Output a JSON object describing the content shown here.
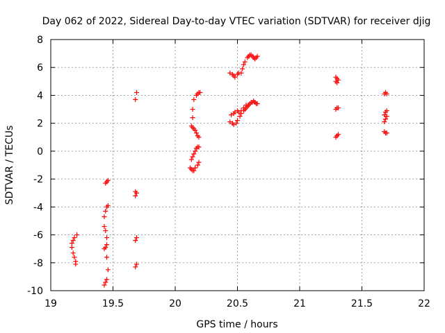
{
  "chart_data": {
    "type": "scatter",
    "title": "Day 062 of 2022, Sidereal Day-to-day VTEC variation (SDTVAR) for receiver djig",
    "xlabel": "GPS time / hours",
    "ylabel": "SDTVAR / TECUs",
    "xlim": [
      19,
      22
    ],
    "ylim": [
      -10,
      8
    ],
    "xticks": [
      19,
      19.5,
      20,
      20.5,
      21,
      21.5,
      22
    ],
    "xtick_labels": [
      "19",
      "19.5",
      "20",
      "20.5",
      "21",
      "21.5",
      "22"
    ],
    "yticks": [
      -10,
      -8,
      -6,
      -4,
      -2,
      0,
      2,
      4,
      6,
      8
    ],
    "ytick_labels": [
      "-10",
      "-8",
      "-6",
      "-4",
      "-2",
      "0",
      "2",
      "4",
      "6",
      "8"
    ],
    "grid": true,
    "marker": "+",
    "color": "#ff0000",
    "series": [
      {
        "points": [
          [
            19.17,
            -6.9
          ],
          [
            19.17,
            -6.6
          ],
          [
            19.18,
            -7.3
          ],
          [
            19.18,
            -6.4
          ],
          [
            19.19,
            -7.6
          ],
          [
            19.19,
            -6.2
          ],
          [
            19.2,
            -7.9
          ],
          [
            19.2,
            -8.1
          ],
          [
            19.21,
            -6.0
          ],
          [
            19.43,
            -9.6
          ],
          [
            19.44,
            -9.4
          ],
          [
            19.45,
            -9.2
          ],
          [
            19.46,
            -8.5
          ],
          [
            19.45,
            -7.6
          ],
          [
            19.44,
            -6.9
          ],
          [
            19.45,
            -6.7
          ],
          [
            19.43,
            -7.0
          ],
          [
            19.45,
            -6.2
          ],
          [
            19.44,
            -5.7
          ],
          [
            19.43,
            -5.4
          ],
          [
            19.43,
            -4.7
          ],
          [
            19.44,
            -4.3
          ],
          [
            19.45,
            -4.0
          ],
          [
            19.46,
            -3.9
          ],
          [
            19.44,
            -2.3
          ],
          [
            19.45,
            -2.2
          ],
          [
            19.46,
            -2.1
          ],
          [
            19.68,
            -8.3
          ],
          [
            19.69,
            -8.1
          ],
          [
            19.68,
            -6.4
          ],
          [
            19.69,
            -6.2
          ],
          [
            19.68,
            -3.2
          ],
          [
            19.69,
            -3.0
          ],
          [
            19.68,
            -2.9
          ],
          [
            19.68,
            3.7
          ],
          [
            19.69,
            4.2
          ],
          [
            20.12,
            -1.2
          ],
          [
            20.13,
            -1.3
          ],
          [
            20.14,
            -1.4
          ],
          [
            20.15,
            -1.4
          ],
          [
            20.16,
            -1.2
          ],
          [
            20.18,
            -1.0
          ],
          [
            20.19,
            -0.8
          ],
          [
            20.13,
            -0.6
          ],
          [
            20.14,
            -0.4
          ],
          [
            20.15,
            -0.2
          ],
          [
            20.16,
            0.0
          ],
          [
            20.17,
            0.2
          ],
          [
            20.18,
            0.3
          ],
          [
            20.19,
            0.3
          ],
          [
            20.13,
            1.8
          ],
          [
            20.14,
            1.7
          ],
          [
            20.15,
            1.6
          ],
          [
            20.16,
            1.5
          ],
          [
            20.17,
            1.3
          ],
          [
            20.18,
            1.1
          ],
          [
            20.19,
            1.0
          ],
          [
            20.14,
            2.4
          ],
          [
            20.14,
            3.0
          ],
          [
            20.15,
            3.7
          ],
          [
            20.17,
            4.0
          ],
          [
            20.18,
            4.1
          ],
          [
            20.19,
            4.2
          ],
          [
            20.2,
            4.2
          ],
          [
            20.44,
            2.1
          ],
          [
            20.46,
            2.0
          ],
          [
            20.47,
            1.9
          ],
          [
            20.49,
            2.0
          ],
          [
            20.5,
            2.2
          ],
          [
            20.52,
            2.5
          ],
          [
            20.53,
            2.7
          ],
          [
            20.55,
            2.9
          ],
          [
            20.56,
            3.0
          ],
          [
            20.57,
            3.1
          ],
          [
            20.58,
            3.2
          ],
          [
            20.59,
            3.3
          ],
          [
            20.6,
            3.4
          ],
          [
            20.61,
            3.5
          ],
          [
            20.62,
            3.5
          ],
          [
            20.63,
            3.6
          ],
          [
            20.64,
            3.5
          ],
          [
            20.65,
            3.4
          ],
          [
            20.66,
            3.4
          ],
          [
            20.45,
            2.6
          ],
          [
            20.47,
            2.7
          ],
          [
            20.48,
            2.8
          ],
          [
            20.5,
            2.9
          ],
          [
            20.51,
            2.8
          ],
          [
            20.53,
            2.9
          ],
          [
            20.55,
            3.1
          ],
          [
            20.57,
            3.3
          ],
          [
            20.44,
            5.6
          ],
          [
            20.46,
            5.5
          ],
          [
            20.47,
            5.4
          ],
          [
            20.48,
            5.3
          ],
          [
            20.5,
            5.5
          ],
          [
            20.51,
            5.6
          ],
          [
            20.53,
            5.6
          ],
          [
            20.54,
            5.9
          ],
          [
            20.55,
            6.2
          ],
          [
            20.56,
            6.4
          ],
          [
            20.58,
            6.7
          ],
          [
            20.59,
            6.8
          ],
          [
            20.6,
            6.9
          ],
          [
            20.61,
            6.9
          ],
          [
            20.62,
            6.8
          ],
          [
            20.63,
            6.7
          ],
          [
            20.64,
            6.6
          ],
          [
            20.65,
            6.7
          ],
          [
            20.66,
            6.8
          ],
          [
            21.29,
            1.0
          ],
          [
            21.3,
            1.1
          ],
          [
            21.31,
            1.2
          ],
          [
            21.29,
            3.0
          ],
          [
            21.3,
            3.1
          ],
          [
            21.31,
            3.1
          ],
          [
            21.29,
            5.0
          ],
          [
            21.29,
            5.3
          ],
          [
            21.3,
            5.2
          ],
          [
            21.31,
            5.1
          ],
          [
            21.3,
            4.9
          ],
          [
            21.68,
            1.4
          ],
          [
            21.69,
            1.3
          ],
          [
            21.7,
            1.3
          ],
          [
            21.68,
            2.1
          ],
          [
            21.69,
            2.3
          ],
          [
            21.7,
            2.5
          ],
          [
            21.68,
            2.6
          ],
          [
            21.69,
            2.8
          ],
          [
            21.7,
            2.9
          ],
          [
            21.68,
            4.1
          ],
          [
            21.69,
            4.2
          ],
          [
            21.7,
            4.1
          ]
        ]
      }
    ]
  }
}
